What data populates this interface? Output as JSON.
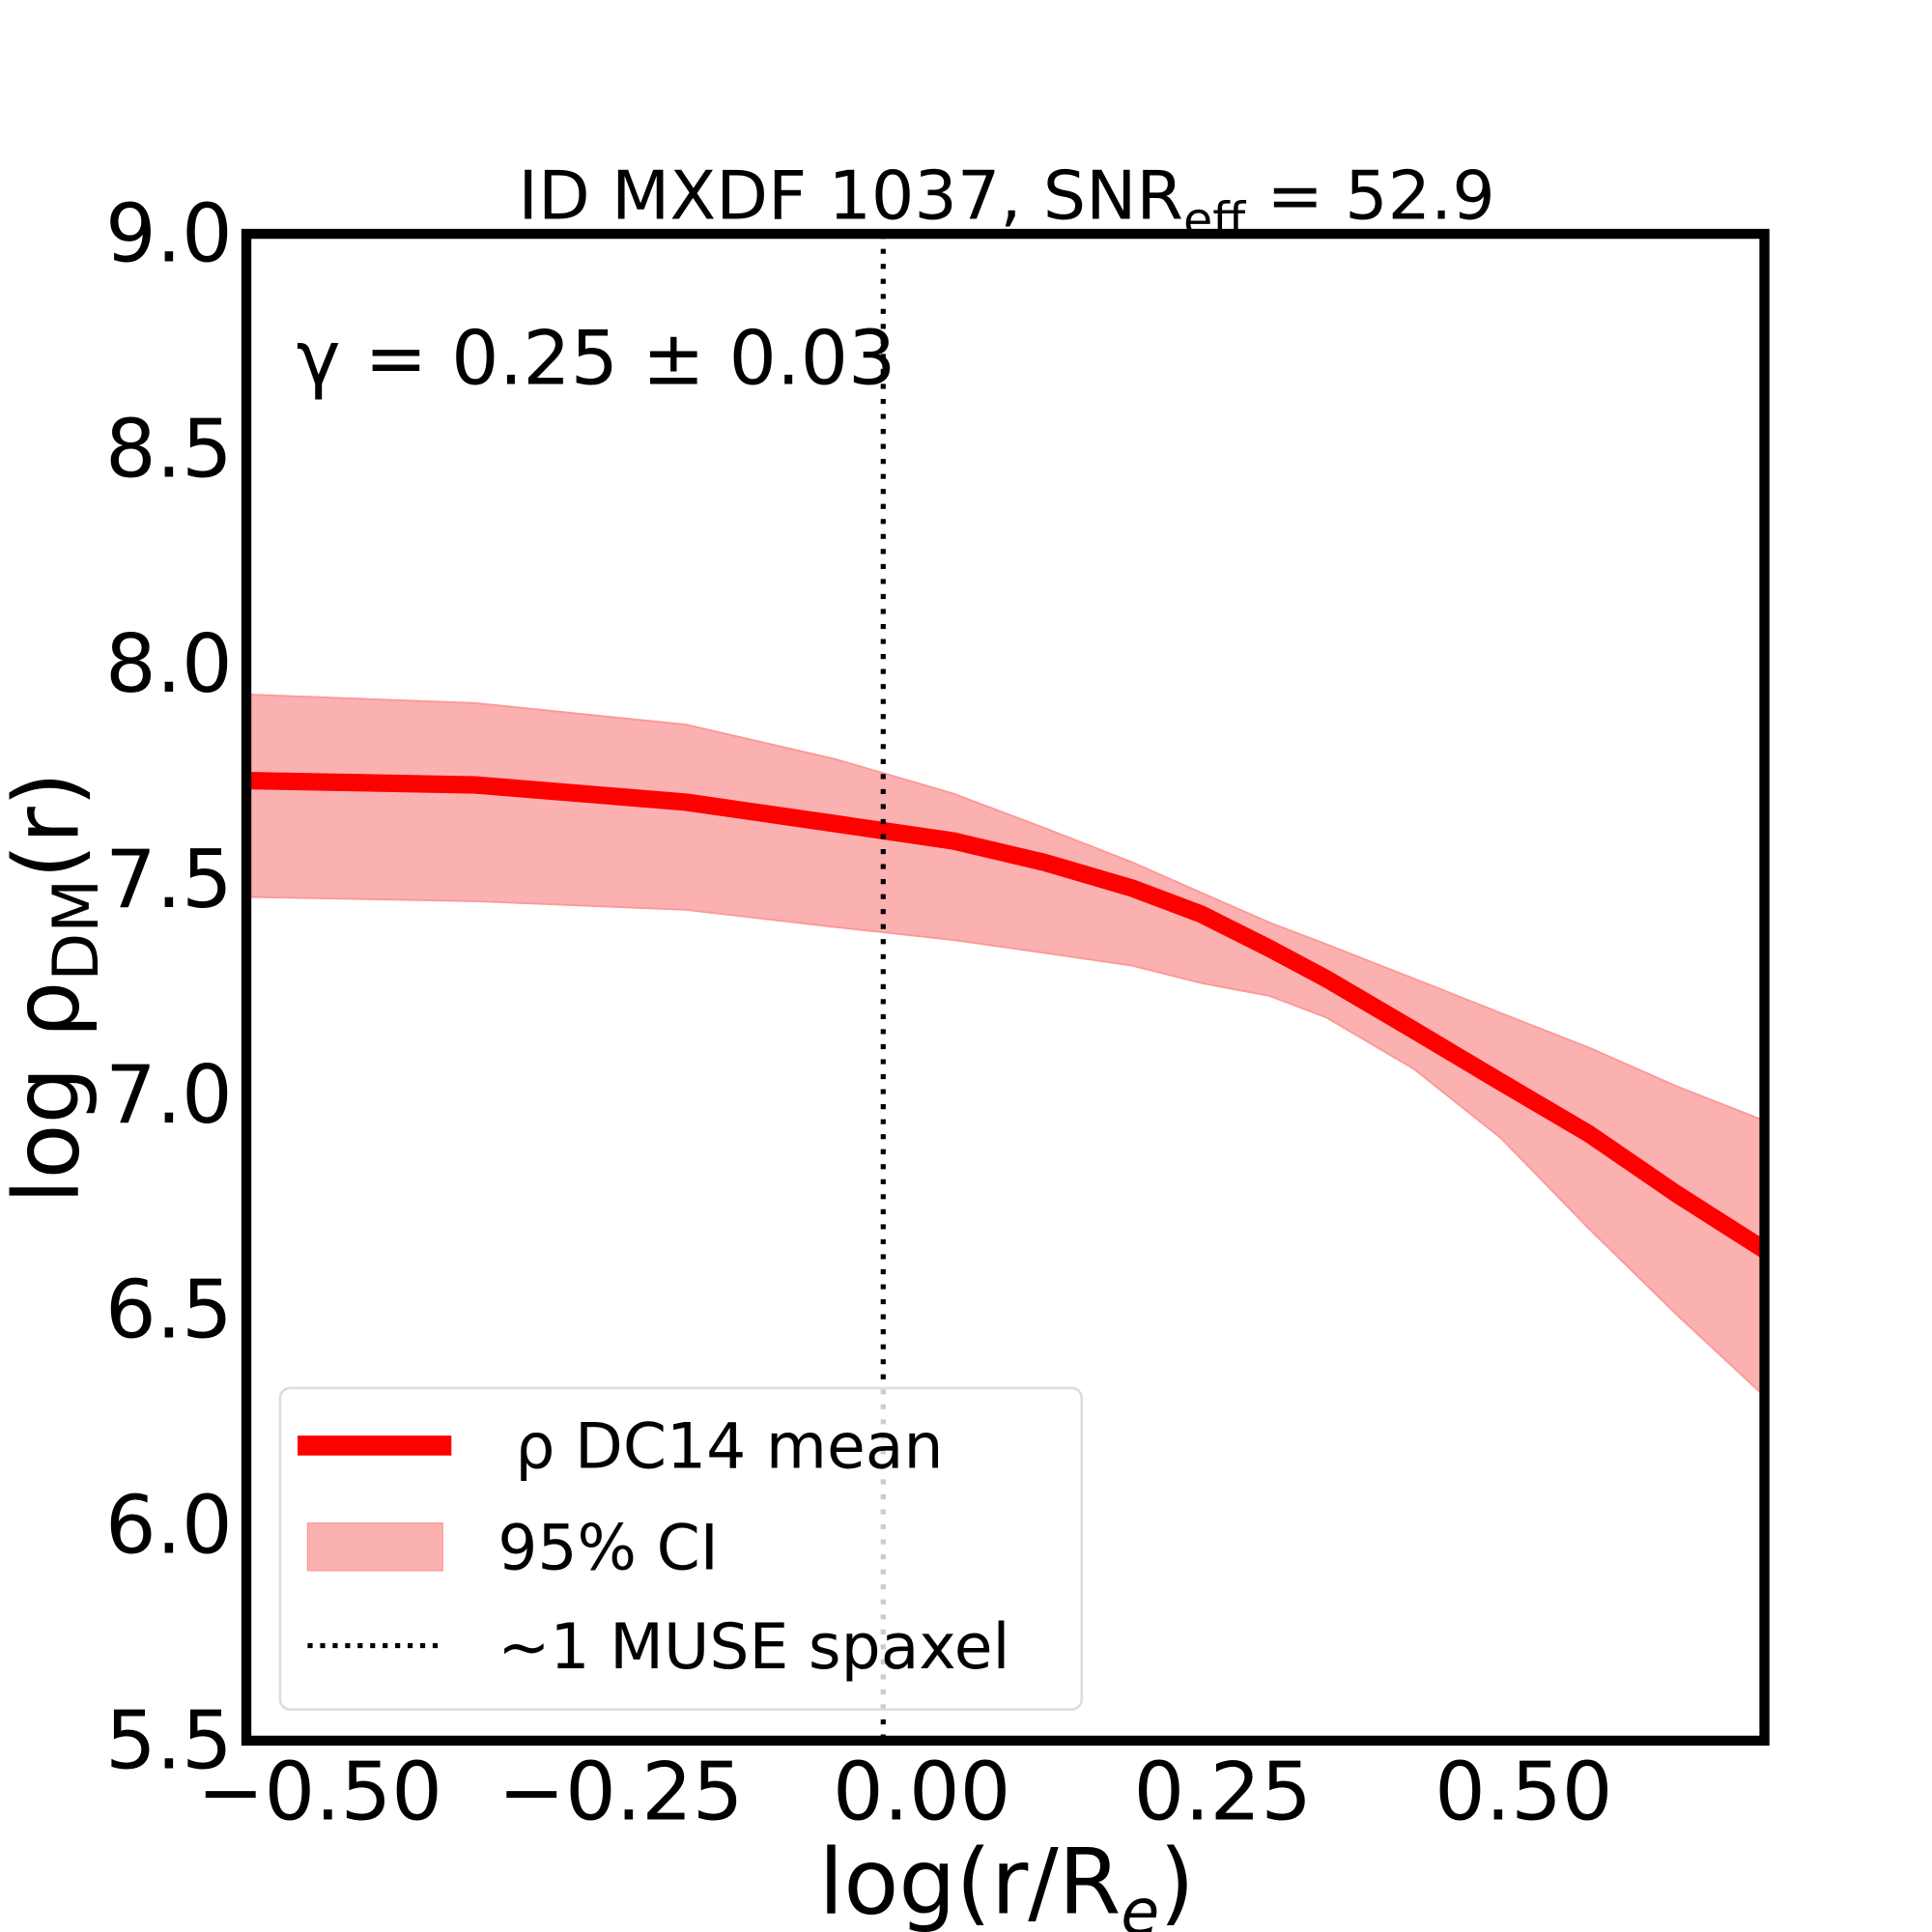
{
  "chart_data": {
    "type": "line",
    "title": "ID MXDF 1037, SNR",
    "title_subscript": "eff",
    "title_suffix": " = 52.9",
    "annotation": "γ = 0.25 ± 0.03",
    "xlabel": "log(r/R",
    "xlabel_subscript": "e",
    "xlabel_suffix": ")",
    "ylabel": "log ρ",
    "ylabel_subscript": "DM",
    "ylabel_suffix": "(r)",
    "xlim": [
      -0.561,
      0.7
    ],
    "ylim": [
      5.5,
      9.0
    ],
    "xticks": [
      "−0.50",
      "−0.25",
      "0.00",
      "0.25",
      "0.50"
    ],
    "xtick_values": [
      -0.5,
      -0.25,
      0,
      0.25,
      0.5
    ],
    "yticks": [
      "5.5",
      "6.0",
      "6.5",
      "7.0",
      "7.5",
      "8.0",
      "8.5",
      "9.0"
    ],
    "ytick_values": [
      5.5,
      6.0,
      6.5,
      7.0,
      7.5,
      8.0,
      8.5,
      9.0
    ],
    "grid": false,
    "legend_placement": "lower-left",
    "x": [
      -0.561,
      -0.371,
      -0.196,
      -0.072,
      0.026,
      0.102,
      0.175,
      0.232,
      0.289,
      0.336,
      0.409,
      0.481,
      0.554,
      0.627,
      0.7
    ],
    "series": [
      {
        "name": "ρ DC14 mean",
        "color": "#ff0000",
        "values": [
          7.73,
          7.72,
          7.68,
          7.63,
          7.59,
          7.54,
          7.48,
          7.42,
          7.34,
          7.27,
          7.15,
          7.03,
          6.91,
          6.77,
          6.64
        ]
      },
      {
        "name": "95% CI",
        "color": "#fcb1b1",
        "kind": "band",
        "upper": [
          7.93,
          7.91,
          7.86,
          7.78,
          7.7,
          7.62,
          7.54,
          7.47,
          7.4,
          7.35,
          7.27,
          7.19,
          7.11,
          7.02,
          6.94
        ],
        "lower": [
          7.46,
          7.45,
          7.43,
          7.39,
          7.36,
          7.33,
          7.3,
          7.26,
          7.23,
          7.18,
          7.06,
          6.9,
          6.69,
          6.49,
          6.3
        ]
      },
      {
        "name": "~1 MUSE spaxel",
        "color": "#000000",
        "kind": "vline",
        "x": -0.032
      }
    ]
  }
}
